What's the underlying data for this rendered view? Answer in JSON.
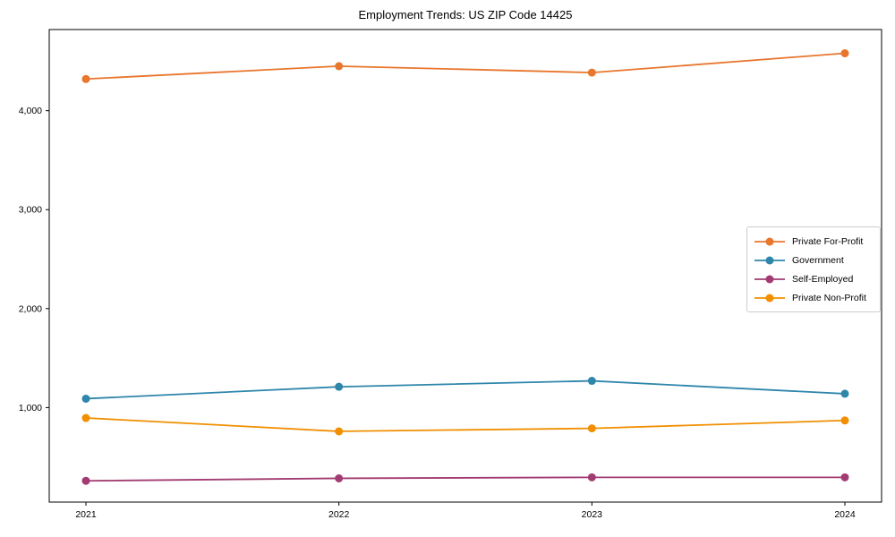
{
  "figure": {
    "background": "#ffffff",
    "frame_color": "#000000",
    "tick_label_color": "#000000"
  },
  "chart_data": {
    "type": "line",
    "title": "Employment Trends: US ZIP Code 14425",
    "x": [
      "2021",
      "2022",
      "2023",
      "2024"
    ],
    "xlabel": "",
    "ylabel": "",
    "ylim": [
      45,
      4820
    ],
    "yticks": [
      1000,
      2000,
      3000,
      4000
    ],
    "ytick_labels": [
      "1,000",
      "2,000",
      "3,000",
      "4,000"
    ],
    "grid": false,
    "legend_position": "middle-right",
    "marker": "circle",
    "series": [
      {
        "name": "Private For-Profit",
        "color": "#e8762d",
        "values": [
          4320,
          4450,
          4385,
          4580
        ]
      },
      {
        "name": "Government",
        "color": "#2e86ab",
        "values": [
          1090,
          1210,
          1270,
          1140
        ]
      },
      {
        "name": "Self-Employed",
        "color": "#a23b72",
        "values": [
          260,
          285,
          295,
          295
        ]
      },
      {
        "name": "Private Non-Profit",
        "color": "#f18f01",
        "values": [
          895,
          760,
          790,
          870
        ]
      }
    ]
  }
}
